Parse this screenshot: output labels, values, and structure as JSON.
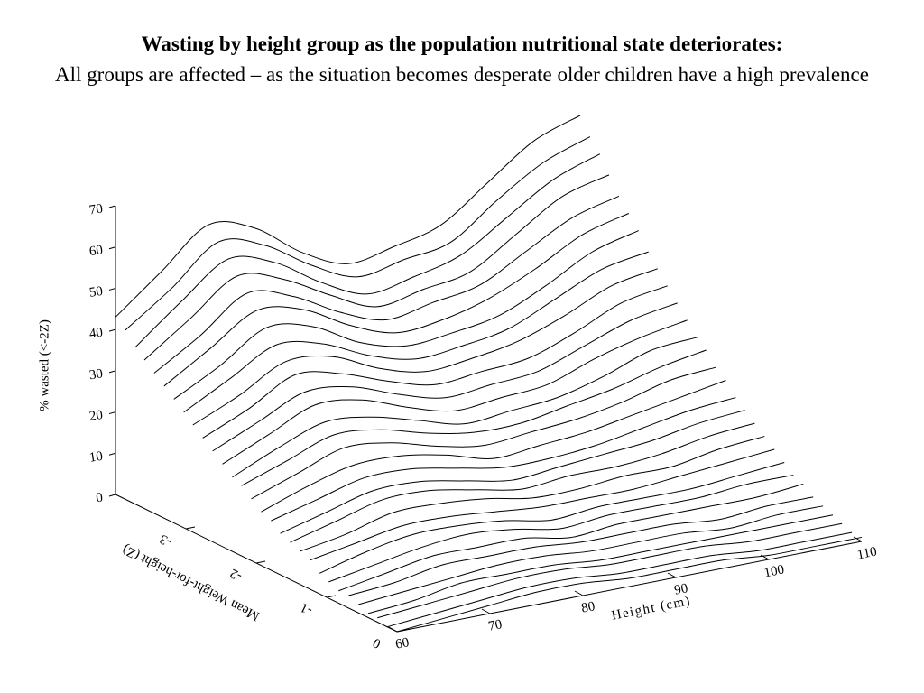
{
  "chart_data": {
    "type": "surface",
    "title": "Wasting by height group as the population nutritional state deteriorates:",
    "subtitle": "All groups are affected – as the situation becomes desperate older children have a high prevalence",
    "xlabel": "Height (cm)",
    "ylabel": "% wasted (<-2Z)",
    "zlabel": "Mean Weight-for-height (Z)",
    "x": [
      60,
      65,
      70,
      75,
      80,
      85,
      90,
      95,
      100,
      105,
      110
    ],
    "xlim": [
      60,
      110
    ],
    "xticks": [
      60,
      70,
      80,
      90,
      100,
      110
    ],
    "ylim": [
      0,
      70
    ],
    "yticks": [
      0,
      10,
      20,
      30,
      40,
      50,
      60,
      70
    ],
    "zlim": [
      0,
      -4
    ],
    "zticks": [
      0,
      -1,
      -2,
      -3
    ],
    "color": "#000000",
    "series": [
      {
        "z": 0,
        "values": [
          0,
          1,
          2,
          3,
          3,
          2,
          2,
          2,
          1,
          1,
          1
        ]
      },
      {
        "z": -0.14,
        "values": [
          0,
          1,
          2,
          3,
          3,
          2,
          2,
          2,
          1,
          1,
          1
        ]
      },
      {
        "z": -0.28,
        "values": [
          1,
          2,
          3,
          4,
          4,
          3,
          3,
          3,
          2,
          2,
          2
        ]
      },
      {
        "z": -0.41,
        "values": [
          1,
          2,
          4,
          4,
          4,
          3,
          3,
          3,
          3,
          3,
          3
        ]
      },
      {
        "z": -0.55,
        "values": [
          2,
          3,
          4,
          5,
          5,
          4,
          4,
          4,
          3,
          4,
          4
        ]
      },
      {
        "z": -0.69,
        "values": [
          3,
          4,
          6,
          6,
          6,
          5,
          5,
          5,
          4,
          5,
          5
        ]
      },
      {
        "z": -0.83,
        "values": [
          3,
          5,
          7,
          7,
          7,
          5,
          6,
          6,
          6,
          6,
          7
        ]
      },
      {
        "z": -0.97,
        "values": [
          4,
          6,
          8,
          9,
          8,
          6,
          7,
          7,
          7,
          8,
          8
        ]
      },
      {
        "z": -1.1,
        "values": [
          5,
          8,
          10,
          10,
          9,
          7,
          8,
          8,
          8,
          9,
          10
        ]
      },
      {
        "z": -1.24,
        "values": [
          7,
          9,
          11,
          11,
          10,
          9,
          9,
          9,
          10,
          11,
          12
        ]
      },
      {
        "z": -1.38,
        "values": [
          8,
          10,
          13,
          13,
          12,
          10,
          10,
          11,
          11,
          13,
          14
        ]
      },
      {
        "z": -1.52,
        "values": [
          9,
          12,
          15,
          15,
          13,
          11,
          12,
          12,
          13,
          15,
          16
        ]
      },
      {
        "z": -1.66,
        "values": [
          10,
          13,
          16,
          16,
          14,
          12,
          13,
          14,
          15,
          17,
          18
        ]
      },
      {
        "z": -1.79,
        "values": [
          12,
          15,
          18,
          18,
          16,
          14,
          14,
          15,
          17,
          19,
          20
        ]
      },
      {
        "z": -1.93,
        "values": [
          13,
          17,
          20,
          20,
          18,
          15,
          16,
          17,
          19,
          21,
          23
        ]
      },
      {
        "z": -2.07,
        "values": [
          15,
          19,
          23,
          22,
          19,
          17,
          18,
          19,
          21,
          24,
          25
        ]
      },
      {
        "z": -2.21,
        "values": [
          17,
          21,
          25,
          24,
          21,
          19,
          19,
          21,
          23,
          26,
          28
        ]
      },
      {
        "z": -2.34,
        "values": [
          18,
          23,
          27,
          26,
          23,
          20,
          21,
          22,
          25,
          29,
          30
        ]
      },
      {
        "z": -2.48,
        "values": [
          20,
          25,
          30,
          29,
          25,
          22,
          23,
          24,
          28,
          31,
          33
        ]
      },
      {
        "z": -2.62,
        "values": [
          22,
          27,
          32,
          31,
          27,
          24,
          25,
          26,
          30,
          34,
          36
        ]
      },
      {
        "z": -2.76,
        "values": [
          24,
          29,
          35,
          33,
          29,
          26,
          27,
          28,
          32,
          37,
          39
        ]
      },
      {
        "z": -2.9,
        "values": [
          26,
          31,
          37,
          36,
          31,
          28,
          29,
          31,
          35,
          40,
          42
        ]
      },
      {
        "z": -3.03,
        "values": [
          28,
          34,
          40,
          38,
          33,
          30,
          31,
          33,
          38,
          43,
          45
        ]
      },
      {
        "z": -3.17,
        "values": [
          30,
          36,
          43,
          41,
          35,
          32,
          33,
          35,
          40,
          46,
          49
        ]
      },
      {
        "z": -3.31,
        "values": [
          32,
          39,
          46,
          44,
          38,
          34,
          35,
          38,
          43,
          49,
          52
        ]
      },
      {
        "z": -3.45,
        "values": [
          34,
          41,
          49,
          46,
          40,
          36,
          38,
          40,
          46,
          52,
          55
        ]
      },
      {
        "z": -3.59,
        "values": [
          36,
          44,
          52,
          49,
          43,
          38,
          40,
          42,
          49,
          56,
          59
        ]
      },
      {
        "z": -3.72,
        "values": [
          38,
          47,
          55,
          52,
          45,
          40,
          42,
          45,
          52,
          59,
          63
        ]
      },
      {
        "z": -3.86,
        "values": [
          41,
          49,
          58,
          55,
          48,
          43,
          45,
          47,
          55,
          62,
          66
        ]
      },
      {
        "z": -4,
        "values": [
          43,
          52,
          61,
          58,
          50,
          45,
          47,
          50,
          58,
          66,
          70
        ]
      }
    ]
  }
}
